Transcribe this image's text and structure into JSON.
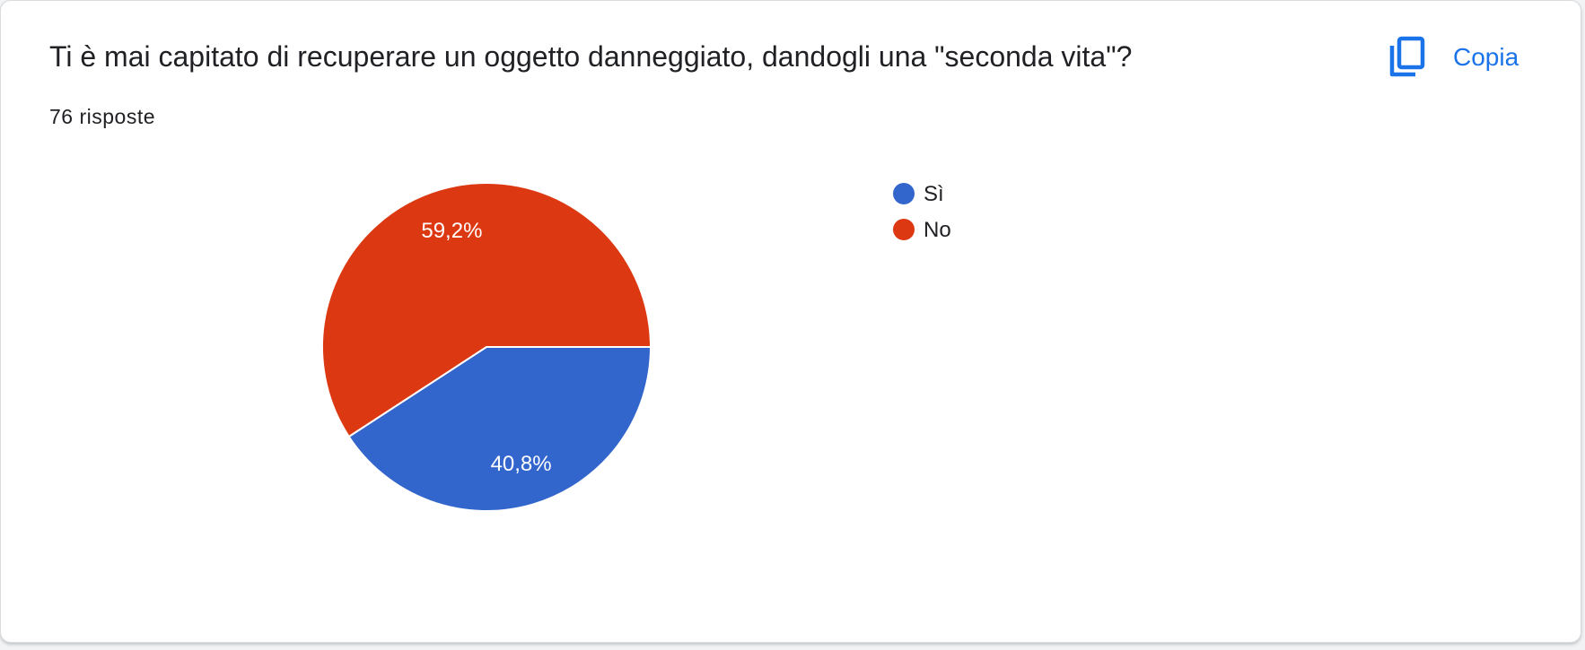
{
  "card": {
    "question": "Ti è mai capitato di recuperare un oggetto danneggiato, dandogli una \"seconda vita\"?",
    "responses": "76 risposte",
    "copy_label": "Copia",
    "copy_icon": "content-copy-icon"
  },
  "colors": {
    "accent": "#1a73e8",
    "yes": "#3366cc",
    "no": "#dc3912"
  },
  "chart_data": {
    "type": "pie",
    "categories": [
      "Sì",
      "No"
    ],
    "values": [
      40.8,
      59.2
    ],
    "labels": [
      "40,8%",
      "59,2%"
    ],
    "colors": [
      "#3366cc",
      "#dc3912"
    ],
    "legend_position": "right"
  }
}
